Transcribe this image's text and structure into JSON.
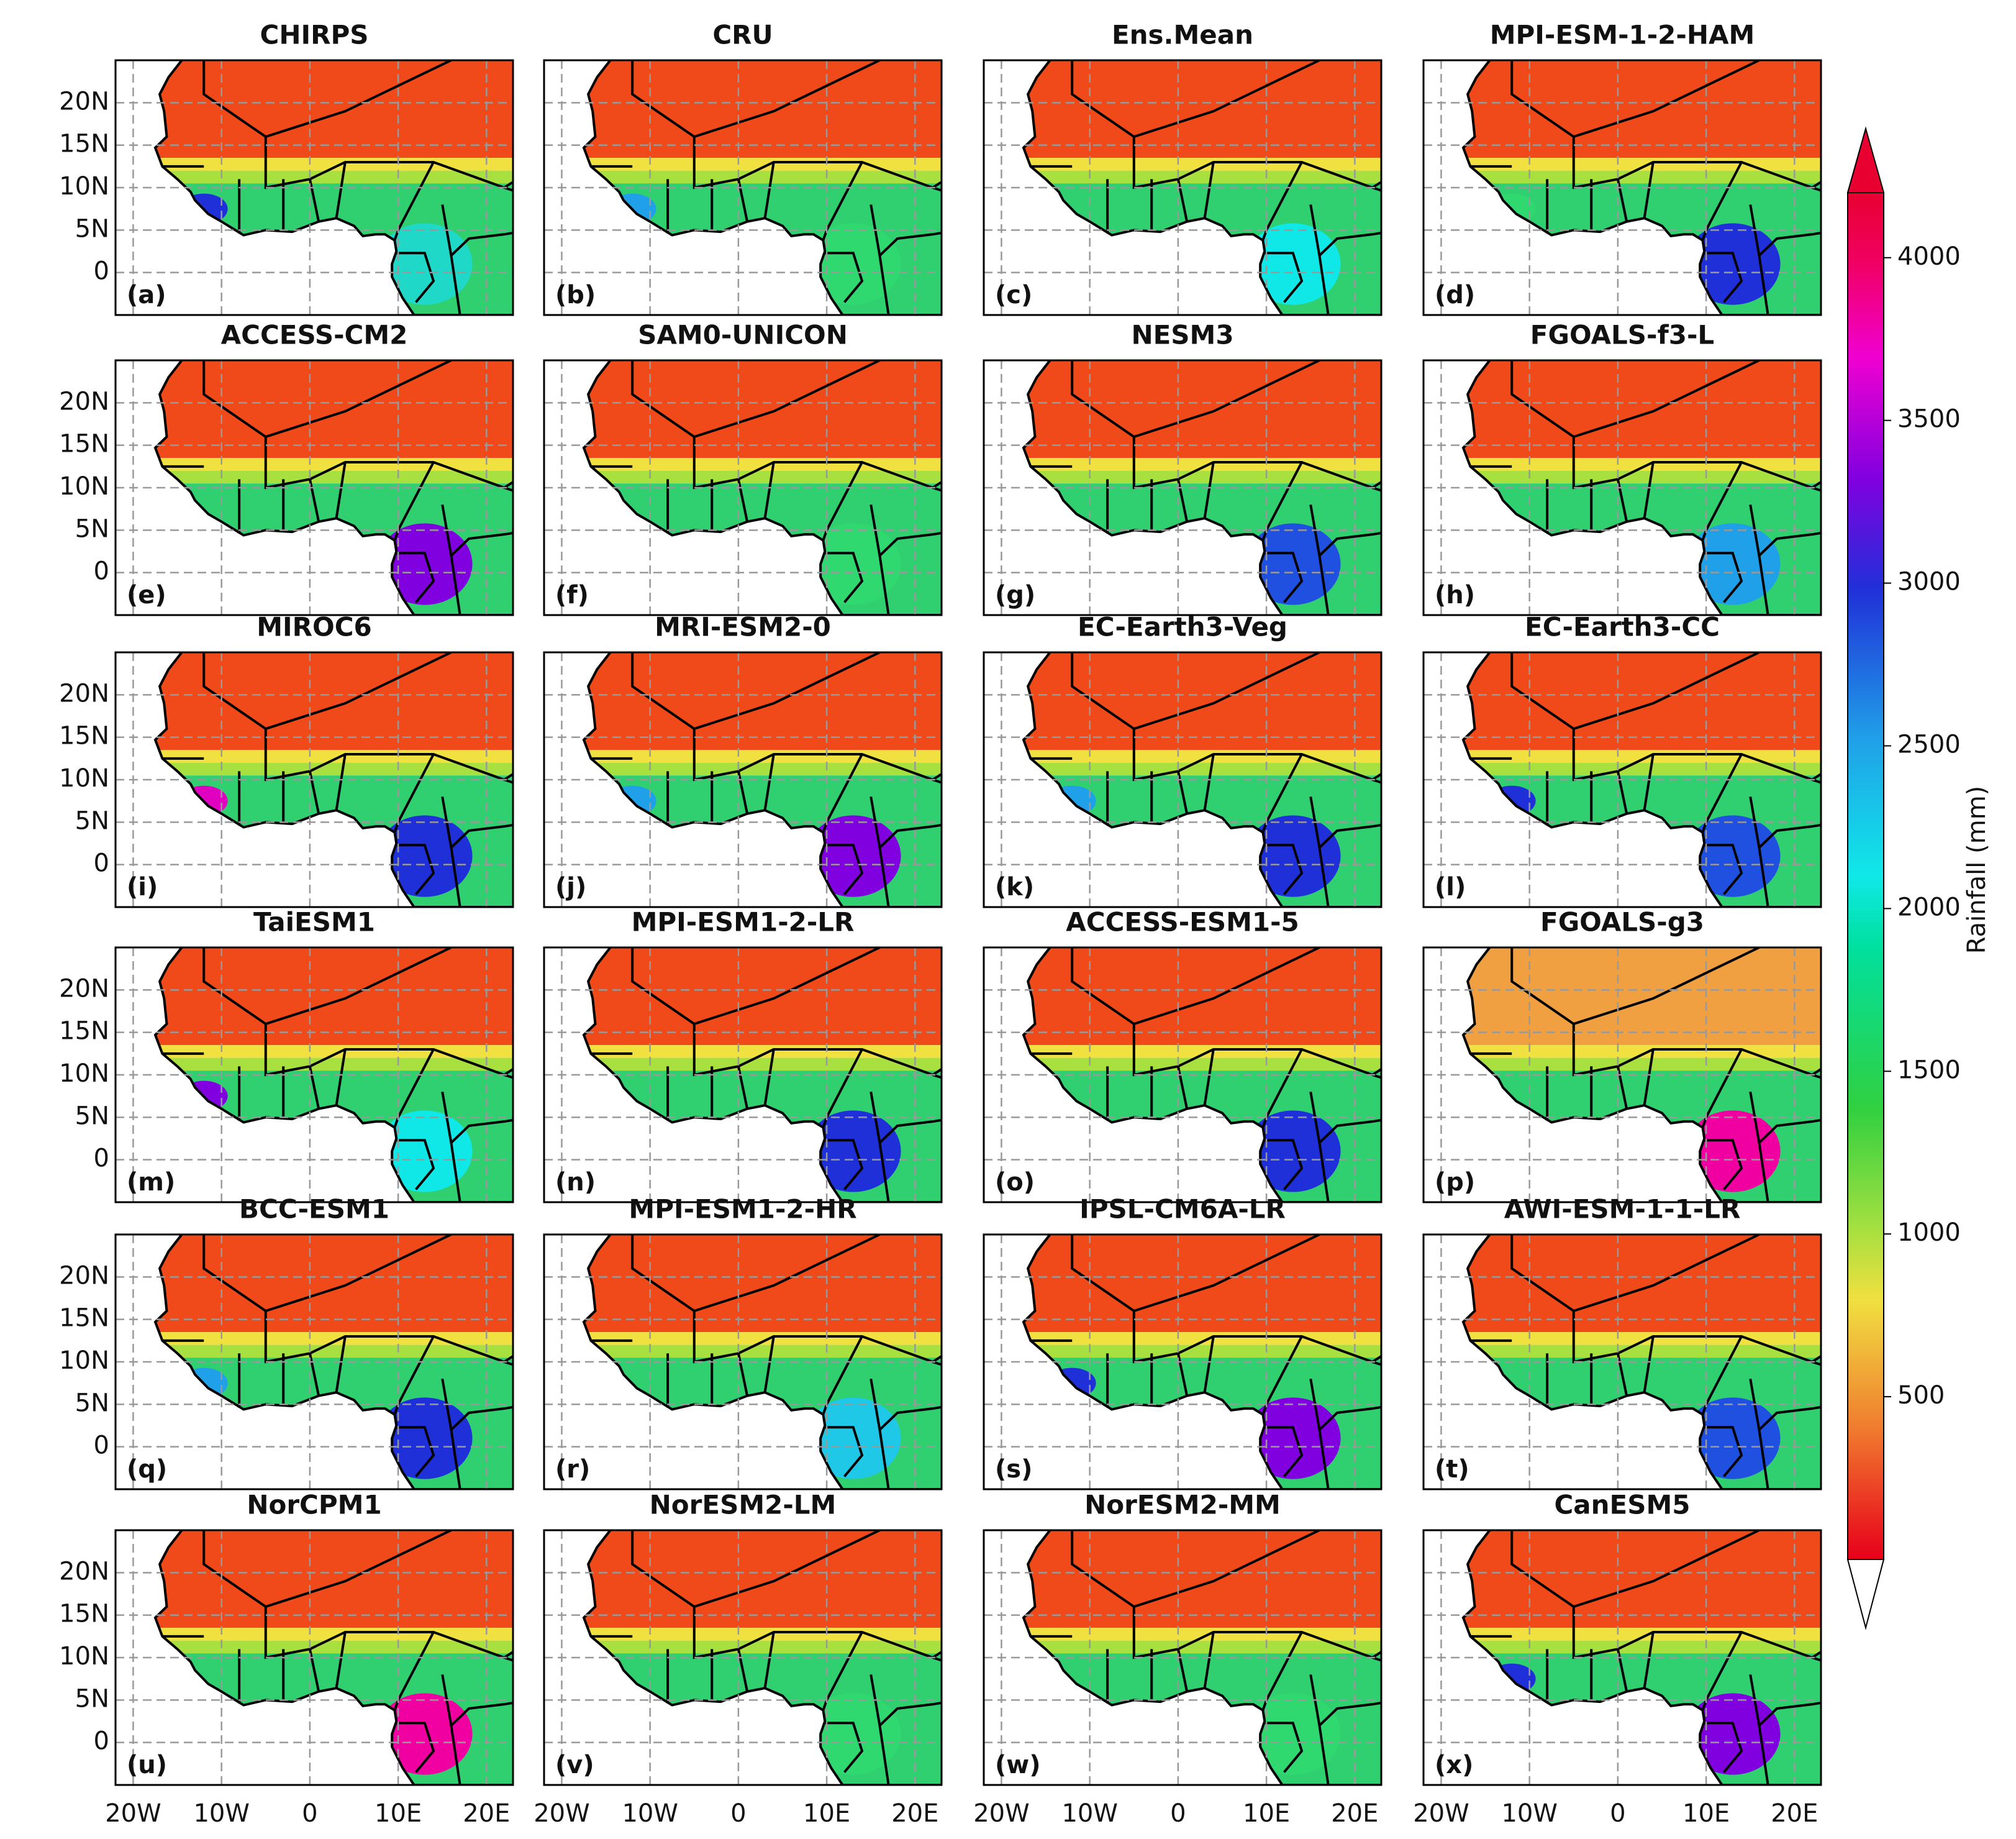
{
  "chart_data": {
    "type": "map",
    "panels": [
      {
        "title": "CHIRPS",
        "label": "(a)"
      },
      {
        "title": "CRU",
        "label": "(b)"
      },
      {
        "title": "Ens.Mean",
        "label": "(c)"
      },
      {
        "title": "MPI-ESM-1-2-HAM",
        "label": "(d)"
      },
      {
        "title": "ACCESS-CM2",
        "label": "(e)"
      },
      {
        "title": "SAM0-UNICON",
        "label": "(f)"
      },
      {
        "title": "NESM3",
        "label": "(g)"
      },
      {
        "title": "FGOALS-f3-L",
        "label": "(h)"
      },
      {
        "title": "MIROC6",
        "label": "(i)"
      },
      {
        "title": "MRI-ESM2-0",
        "label": "(j)"
      },
      {
        "title": "EC-Earth3-Veg",
        "label": "(k)"
      },
      {
        "title": "EC-Earth3-CC",
        "label": "(l)"
      },
      {
        "title": "TaiESM1",
        "label": "(m)"
      },
      {
        "title": "MPI-ESM1-2-LR",
        "label": "(n)"
      },
      {
        "title": "ACCESS-ESM1-5",
        "label": "(o)"
      },
      {
        "title": "FGOALS-g3",
        "label": "(p)"
      },
      {
        "title": "BCC-ESM1",
        "label": "(q)"
      },
      {
        "title": "MPI-ESM1-2-HR",
        "label": "(r)"
      },
      {
        "title": "IPSL-CM6A-LR",
        "label": "(s)"
      },
      {
        "title": "AWI-ESM-1-1-LR",
        "label": "(t)"
      },
      {
        "title": "NorCPM1",
        "label": "(u)"
      },
      {
        "title": "NorESM2-LM",
        "label": "(v)"
      },
      {
        "title": "NorESM2-MM",
        "label": "(w)"
      },
      {
        "title": "CanESM5",
        "label": "(x)"
      }
    ],
    "xlim": [
      -22,
      23
    ],
    "ylim": [
      -5,
      25
    ],
    "xticks": [
      {
        "value": -20,
        "label": "20W"
      },
      {
        "value": -10,
        "label": "10W"
      },
      0,
      {
        "value": 10,
        "label": "10E"
      },
      {
        "value": 20,
        "label": "20E"
      }
    ],
    "yticks": [
      {
        "value": 20,
        "label": "20N"
      },
      {
        "value": 15,
        "label": "15N"
      },
      {
        "value": 10,
        "label": "10N"
      },
      {
        "value": 5,
        "label": "5N"
      },
      0
    ],
    "colorbar": {
      "label": "Rainfall (mm)",
      "lim": [
        0,
        4200
      ],
      "ticks": [
        500,
        1000,
        1500,
        2000,
        2500,
        3000,
        3500,
        4000
      ]
    }
  }
}
